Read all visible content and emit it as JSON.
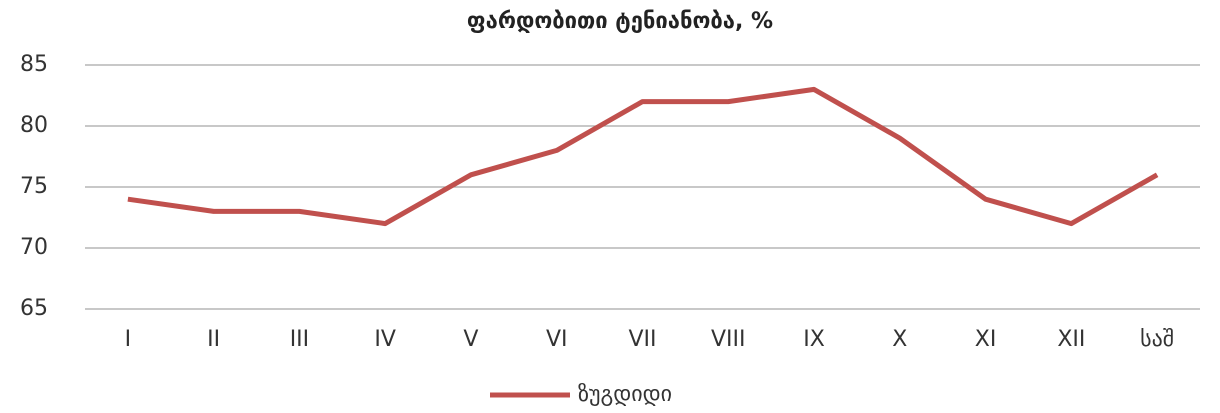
{
  "chart_data": {
    "type": "line",
    "title": "ფარდობითი ტენიანობა, %",
    "categories": [
      "I",
      "II",
      "III",
      "IV",
      "V",
      "VI",
      "VII",
      "VIII",
      "IX",
      "X",
      "XI",
      "XII",
      "საშ"
    ],
    "series": [
      {
        "name": "ზუგდიდი",
        "color": "#c0504d",
        "values": [
          74,
          73,
          73,
          72,
          76,
          78,
          82,
          82,
          83,
          79,
          74,
          72,
          76
        ]
      }
    ],
    "ylim": [
      65,
      85
    ],
    "yticks": [
      65,
      70,
      75,
      80,
      85
    ],
    "grid": true,
    "legend": "bottom"
  }
}
